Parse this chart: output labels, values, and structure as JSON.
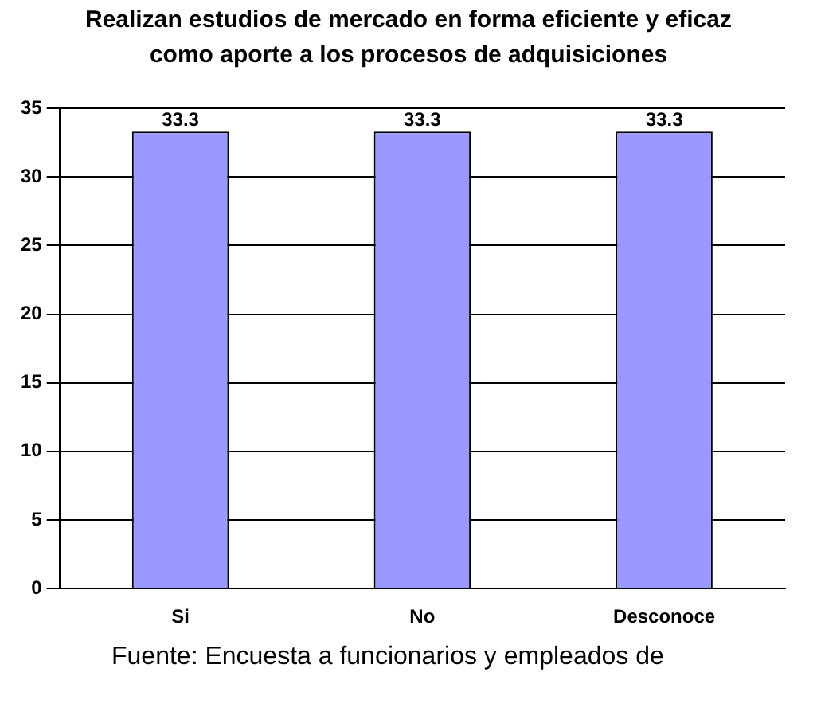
{
  "chart_data": {
    "type": "bar",
    "title": "Realizan estudios de mercado en forma eficiente y eficaz como aporte a los procesos de adquisiciones",
    "categories": [
      "Si",
      "No",
      "Desconoce"
    ],
    "values": [
      33.3,
      33.3,
      33.3
    ],
    "color": "#9999ff",
    "ylim": [
      0,
      35
    ],
    "yticks": [
      0,
      5,
      10,
      15,
      20,
      25,
      30,
      35
    ],
    "grid": "y",
    "legend": false,
    "data_labels": true,
    "annotations": [
      "Fuente: Encuesta a funcionarios y empleados de"
    ]
  }
}
